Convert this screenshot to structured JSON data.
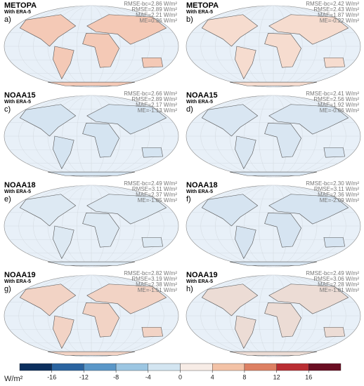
{
  "panels": [
    {
      "title": "METOPA",
      "subtitle": "With ERA-5",
      "label": "a)",
      "stats": [
        "RMSE-bc=2.86 W/m²",
        "RMSE=2.89 W/m²",
        "MAE=2.21 W/m²",
        "ME=0.36 W/m²"
      ]
    },
    {
      "title": "METOPA",
      "subtitle": "With ERA-5",
      "label": "b)",
      "stats": [
        "RMSE-bc=2.42 W/m²",
        "RMSE=2.43 W/m²",
        "MAE=1.87 W/m²",
        "ME=-0.22 W/m²"
      ]
    },
    {
      "title": "NOAA15",
      "subtitle": "With ERA-5",
      "label": "c)",
      "stats": [
        "RMSE-bc=2.66 W/m²",
        "RMSE=2.89 W/m²",
        "MAE=2.17 W/m²",
        "ME=-1.13 W/m²"
      ]
    },
    {
      "title": "NOAA15",
      "subtitle": "With ERA-5",
      "label": "d)",
      "stats": [
        "RMSE-bc=2.41 W/m²",
        "RMSE=2.56 W/m²",
        "MAE=1.92 W/m²",
        "ME=-0.86 W/m²"
      ]
    },
    {
      "title": "NOAA18",
      "subtitle": "With ERA-5",
      "label": "e)",
      "stats": [
        "RMSE-bc=2.49 W/m²",
        "RMSE=3.11 W/m²",
        "MAE=2.37 W/m²",
        "ME=-1.85 W/m²"
      ]
    },
    {
      "title": "NOAA18",
      "subtitle": "With ERA-5",
      "label": "f)",
      "stats": [
        "RMSE-bc=2.30 W/m²",
        "RMSE=3.11 W/m²",
        "MAE=2.36 W/m²",
        "ME=-2.09 W/m²"
      ]
    },
    {
      "title": "NOAA19",
      "subtitle": "With ERA-5",
      "label": "g)",
      "stats": [
        "RMSE-bc=2.82 W/m²",
        "RMSE=3.19 W/m²",
        "MAE=2.38 W/m²",
        "ME=-1.51 W/m²"
      ]
    },
    {
      "title": "NOAA19",
      "subtitle": "With ERA-5",
      "label": "h)",
      "stats": [
        "RMSE-bc=2.49 W/m²",
        "RMSE=3.06 W/m²",
        "MAE=2.28 W/m²",
        "ME=-1.81 W/m²"
      ]
    }
  ],
  "colorbar": {
    "unit": "W/m²",
    "bounds": [
      -20,
      -16,
      -12,
      -8,
      -4,
      0,
      4,
      8,
      12,
      16,
      20
    ],
    "colors": [
      "#0b2f5e",
      "#2a64a0",
      "#5a97c8",
      "#9cc6e2",
      "#d3e5f1",
      "#f7ece6",
      "#f3c2a6",
      "#dd8063",
      "#b92d33",
      "#6a0d22"
    ],
    "ticks": [
      -16,
      -12,
      -8,
      -4,
      0,
      4,
      8,
      12,
      16
    ]
  }
}
